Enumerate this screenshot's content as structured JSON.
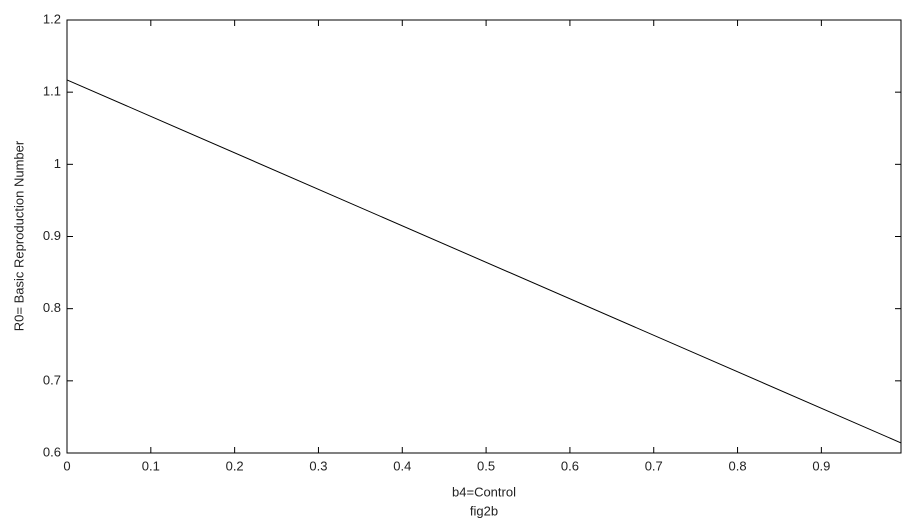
{
  "chart_data": {
    "type": "line",
    "x": [
      0,
      0.995
    ],
    "values": [
      1.117,
      0.614
    ],
    "color": "#000000",
    "xlabel": "b4=Control",
    "ylabel": "R0= Basic Reproduction Number",
    "caption": "fig2b",
    "xlim": [
      0,
      0.995
    ],
    "ylim": [
      0.6,
      1.2
    ],
    "xticks": [
      0,
      0.1,
      0.2,
      0.3,
      0.4,
      0.5,
      0.6,
      0.7,
      0.8,
      0.9
    ],
    "yticks": [
      0.6,
      0.7,
      0.8,
      0.9,
      1,
      1.1,
      1.2
    ],
    "grid": false
  }
}
